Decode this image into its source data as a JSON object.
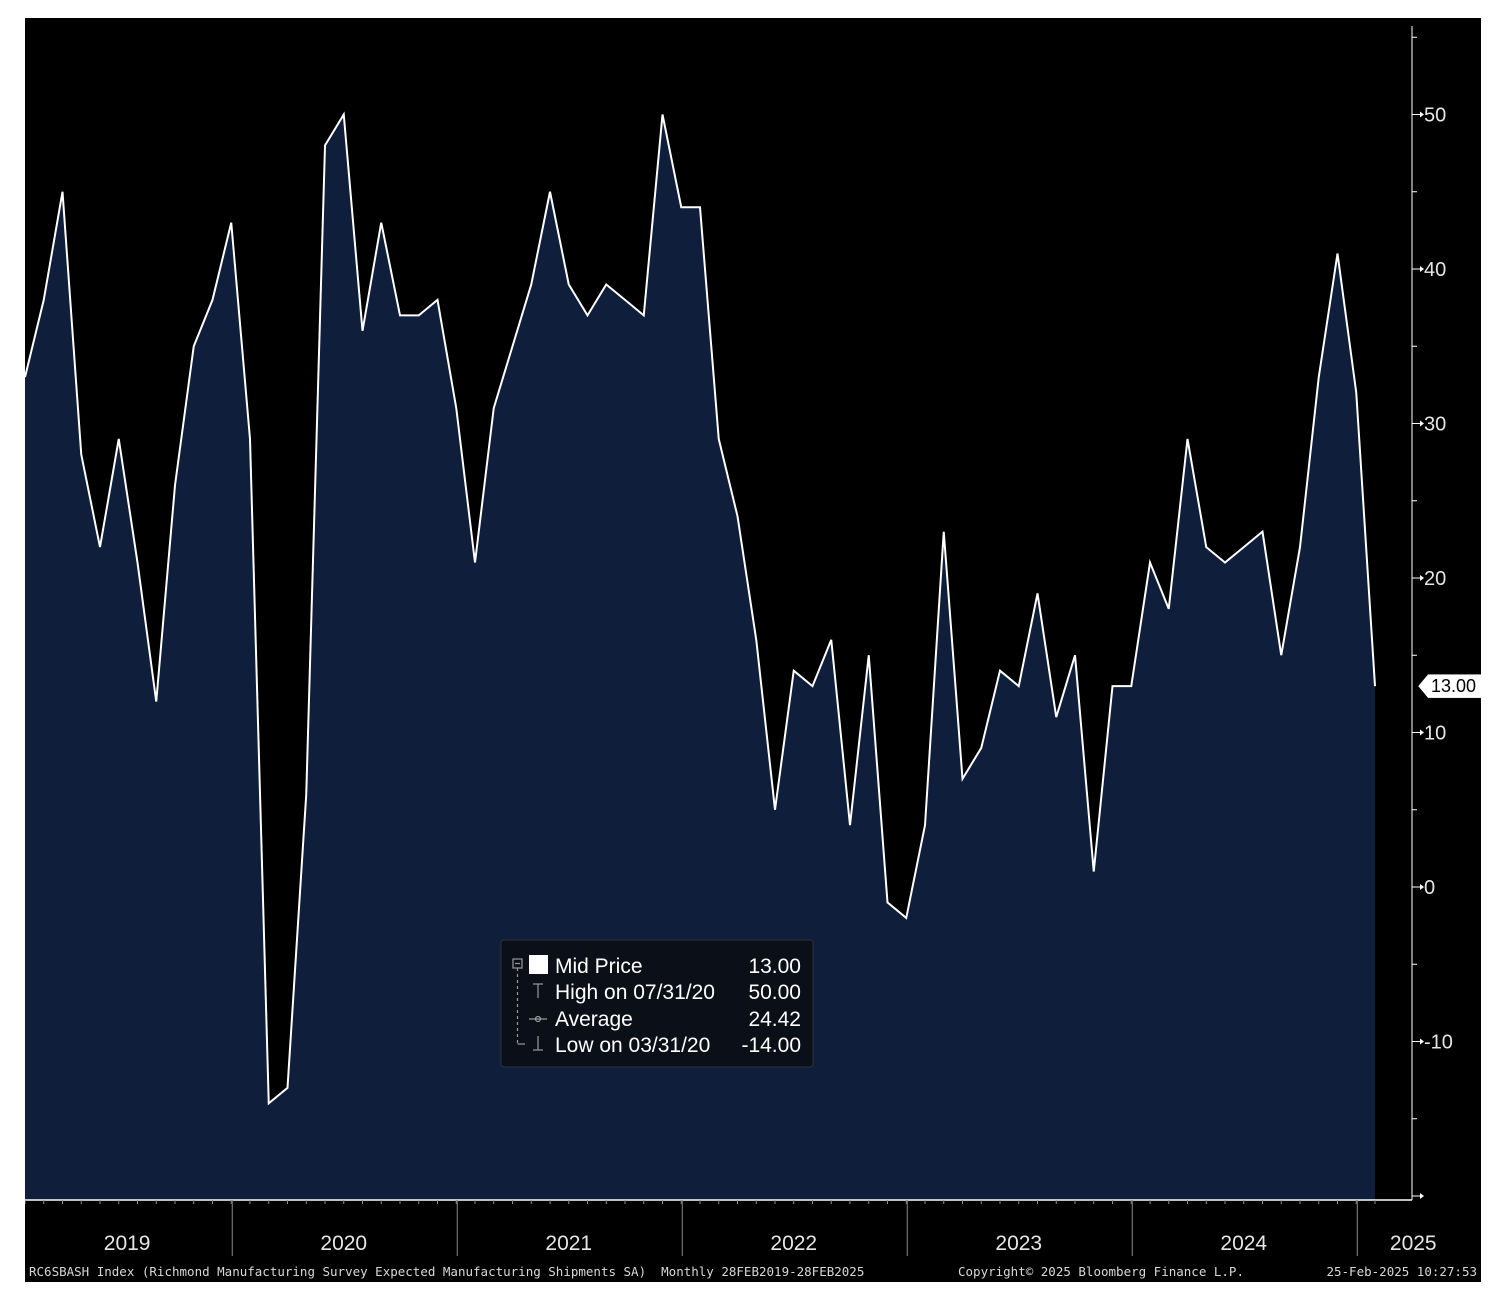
{
  "chart_data": {
    "type": "area",
    "series": [
      {
        "name": "Mid Price",
        "x": [
          "2019-02",
          "2019-03",
          "2019-04",
          "2019-05",
          "2019-06",
          "2019-07",
          "2019-08",
          "2019-09",
          "2019-10",
          "2019-11",
          "2019-12",
          "2020-01",
          "2020-02",
          "2020-03",
          "2020-04",
          "2020-05",
          "2020-06",
          "2020-07",
          "2020-08",
          "2020-09",
          "2020-10",
          "2020-11",
          "2020-12",
          "2021-01",
          "2021-02",
          "2021-03",
          "2021-04",
          "2021-05",
          "2021-06",
          "2021-07",
          "2021-08",
          "2021-09",
          "2021-10",
          "2021-11",
          "2021-12",
          "2022-01",
          "2022-02",
          "2022-03",
          "2022-04",
          "2022-05",
          "2022-06",
          "2022-07",
          "2022-08",
          "2022-09",
          "2022-10",
          "2022-11",
          "2022-12",
          "2023-01",
          "2023-02",
          "2023-03",
          "2023-04",
          "2023-05",
          "2023-06",
          "2023-07",
          "2023-08",
          "2023-09",
          "2023-10",
          "2023-11",
          "2023-12",
          "2024-01",
          "2024-02",
          "2024-03",
          "2024-04",
          "2024-05",
          "2024-06",
          "2024-07",
          "2024-08",
          "2024-09",
          "2024-10",
          "2024-11",
          "2024-12",
          "2025-01",
          "2025-02"
        ],
        "values": [
          33,
          38,
          45,
          28,
          22,
          29,
          21,
          12,
          26,
          35,
          38,
          43,
          29,
          -14,
          -13,
          6,
          48,
          50,
          36,
          43,
          37,
          37,
          38,
          31,
          21,
          31,
          35,
          39,
          45,
          39,
          37,
          39,
          38,
          37,
          50,
          44,
          44,
          29,
          24,
          16,
          5,
          14,
          13,
          16,
          4,
          15,
          -1,
          -2,
          4,
          23,
          7,
          9,
          14,
          13,
          19,
          11,
          15,
          1,
          13,
          13,
          21,
          18,
          29,
          22,
          21,
          22,
          23,
          15,
          22,
          33,
          41,
          32,
          13
        ]
      }
    ],
    "ylim": [
      -20,
      56
    ],
    "yticks": [
      -10,
      0,
      10,
      20,
      30,
      40,
      50
    ],
    "years": [
      "2019",
      "2020",
      "2021",
      "2022",
      "2023",
      "2024",
      "2025"
    ],
    "last_value_label": "13.00",
    "legend": {
      "position": "center-bottom",
      "rows": [
        {
          "symbol": "square",
          "label": "Mid Price",
          "value": "13.00"
        },
        {
          "symbol": "high",
          "label": "High on 07/31/20",
          "value": "50.00"
        },
        {
          "symbol": "average",
          "label": "Average",
          "value": "24.42"
        },
        {
          "symbol": "low",
          "label": "Low on 03/31/20",
          "value": "-14.00"
        }
      ]
    },
    "colors": {
      "background": "#000000",
      "area_fill": "#0e1e3b",
      "line": "#ffffff",
      "axis": "#ffffff"
    },
    "grid": false
  },
  "footer": {
    "left": "RC6SBASH Index (Richmond Manufacturing Survey Expected Manufacturing Shipments SA)  Monthly 28FEB2019-28FEB2025",
    "center": "Copyright© 2025 Bloomberg Finance L.P.",
    "right": "25-Feb-2025 10:27:53"
  }
}
